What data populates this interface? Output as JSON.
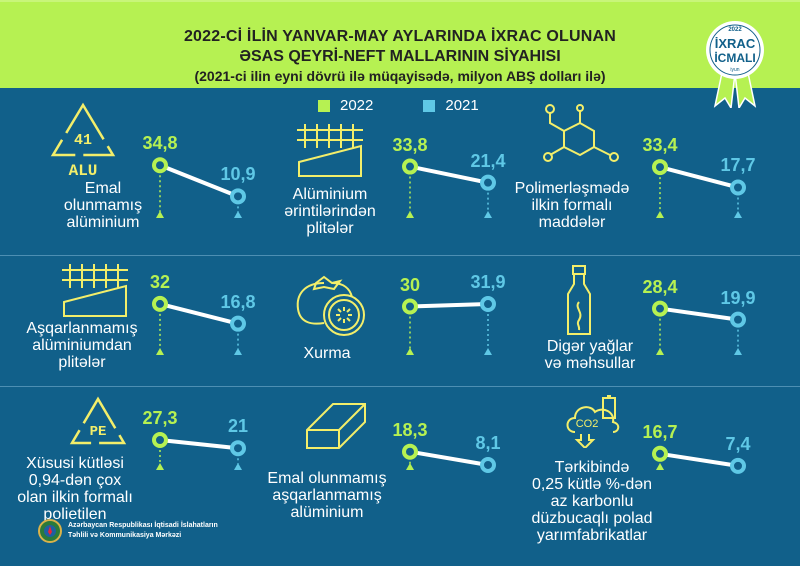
{
  "header": {
    "title_line1": "2022-Cİ İLİN YANVAR-MAY AYLARINDA İXRAC OLUNAN",
    "title_line2": "ƏSAS QEYRİ-NEFT MALLARININ SİYAHISI",
    "subtitle": "(2021-ci ilin eyni dövrü ilə müqayisədə, milyon ABŞ dolları ilə)"
  },
  "badge": {
    "year": "2022",
    "line1": "İXRAC",
    "line2": "İCMALI",
    "month": "iyun"
  },
  "colors": {
    "background": "#11608a",
    "header": "#b6f152",
    "y2022": "#b6f152",
    "y2021": "#5fc8e6",
    "icon": "#f3ee6a"
  },
  "chart_data": {
    "type": "slope",
    "title": "ƏSAS QEYRİ-NEFT MALLARININ SİYAHISI",
    "unit": "milyon ABŞ dolları",
    "series_names": [
      "2022",
      "2021"
    ],
    "items": [
      {
        "label_lines": [
          "Emal",
          "olunmamış",
          "alüminium"
        ],
        "icon": "recycle-alu-icon",
        "icon_text": "41",
        "icon_sub": "ALU",
        "v2022": 34.8,
        "v2021": 10.9,
        "t2022": "34,8",
        "t2021": "10,9"
      },
      {
        "label_lines": [
          "Alüminium",
          "ərintilərindən",
          "plitələr"
        ],
        "icon": "aluminium-plate-icon",
        "v2022": 33.8,
        "v2021": 21.4,
        "t2022": "33,8",
        "t2021": "21,4"
      },
      {
        "label_lines": [
          "Polimerləşmədə",
          "ilkin formalı",
          "maddələr"
        ],
        "icon": "molecule-icon",
        "v2022": 33.4,
        "v2021": 17.7,
        "t2022": "33,4",
        "t2021": "17,7"
      },
      {
        "label_lines": [
          "Aşqarlanmamış",
          "alüminiumdan",
          "plitələr"
        ],
        "icon": "aluminium-plate-icon",
        "v2022": 32,
        "v2021": 16.8,
        "t2022": "32",
        "t2021": "16,8"
      },
      {
        "label_lines": [
          "Xurma"
        ],
        "icon": "persimmon-icon",
        "v2022": 30,
        "v2021": 31.9,
        "t2022": "30",
        "t2021": "31,9"
      },
      {
        "label_lines": [
          "Digər yağlar",
          "və məhsullar"
        ],
        "icon": "oil-bottle-icon",
        "v2022": 28.4,
        "v2021": 19.9,
        "t2022": "28,4",
        "t2021": "19,9"
      },
      {
        "label_lines": [
          "Xüsusi kütləsi",
          "0,94-dən çox",
          "olan ilkin formalı",
          "polietilen"
        ],
        "icon": "recycle-pe-icon",
        "icon_sub": "PE",
        "v2022": 27.3,
        "v2021": 21,
        "t2022": "27,3",
        "t2021": "21"
      },
      {
        "label_lines": [
          "Emal olunmamış",
          "aşqarlanmamış",
          "alüminium"
        ],
        "icon": "aluminium-bar-icon",
        "v2022": 18.3,
        "v2021": 8.1,
        "t2022": "18,3",
        "t2021": "8,1"
      },
      {
        "label_lines": [
          "Tərkibində",
          "0,25 kütlə %-dən",
          "az karbonlu",
          "düzbucaqlı polad",
          "yarımfabrikatlar"
        ],
        "icon": "co2-cloud-icon",
        "icon_text": "CO2",
        "v2022": 16.7,
        "v2021": 7.4,
        "t2022": "16,7",
        "t2021": "7,4"
      }
    ]
  },
  "footer": {
    "line1": "Azərbaycan Respublikası İqtisadi İslahatların",
    "line2": "Təhlili və Kommunikasiya Mərkəzi"
  }
}
